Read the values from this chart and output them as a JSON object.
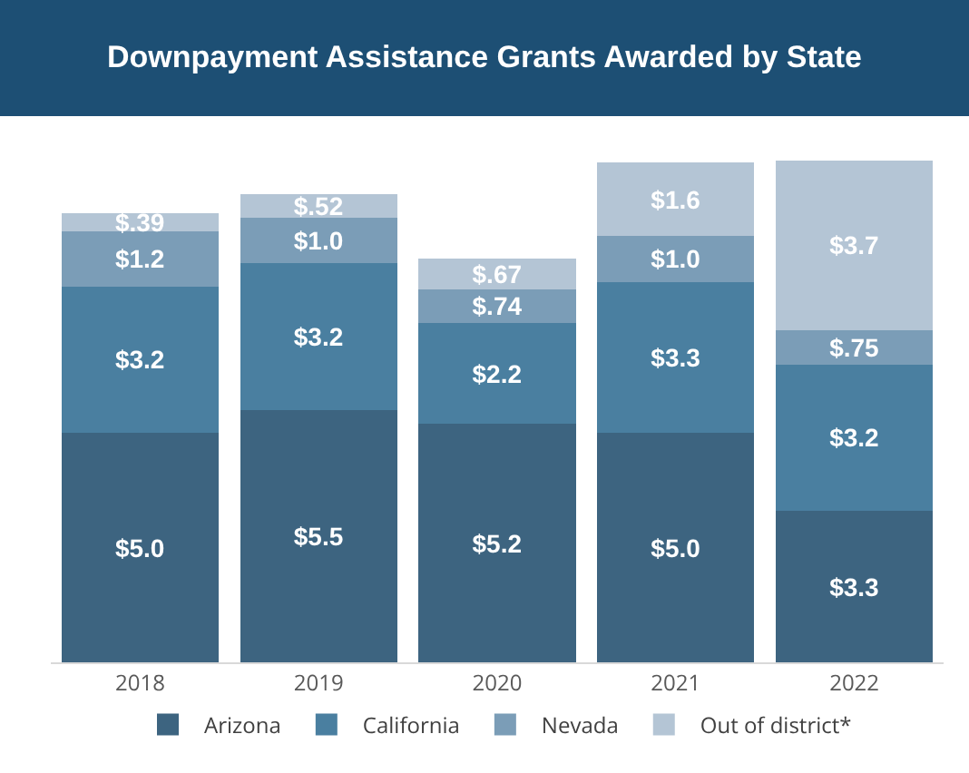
{
  "chart_data": {
    "type": "bar",
    "title": "Downpayment Assistance Grants Awarded by State",
    "stacked": true,
    "legend": "bottom",
    "categories": [
      "2018",
      "2019",
      "2020",
      "2021",
      "2022"
    ],
    "series": [
      {
        "name": "Arizona",
        "color": "#3d6480",
        "values": [
          5.0,
          5.5,
          5.2,
          5.0,
          3.3
        ],
        "value_labels": [
          "$5.0",
          "$5.5",
          "$5.2",
          "$5.0",
          "$3.3"
        ]
      },
      {
        "name": "California",
        "color": "#4a7fa0",
        "values": [
          3.2,
          3.2,
          2.2,
          3.3,
          3.2
        ],
        "value_labels": [
          "$3.2",
          "$3.2",
          "$2.2",
          "$3.3",
          "$3.2"
        ]
      },
      {
        "name": "Nevada",
        "color": "#7b9db7",
        "values": [
          1.2,
          1.0,
          0.74,
          1.0,
          0.75
        ],
        "value_labels": [
          "$1.2",
          "$1.0",
          "$.74",
          "$1.0",
          "$.75"
        ]
      },
      {
        "name": "Out of district*",
        "color": "#b4c5d5",
        "values": [
          0.39,
          0.52,
          0.67,
          1.6,
          3.7
        ],
        "value_labels": [
          "$.39",
          "$.52",
          "$.67",
          "$1.6",
          "$3.7"
        ]
      }
    ]
  }
}
